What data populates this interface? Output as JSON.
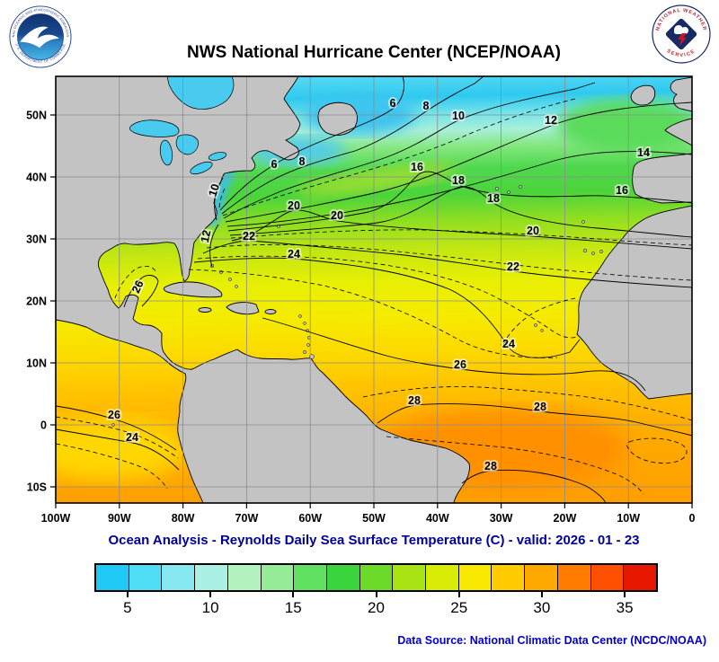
{
  "header": {
    "title": "NWS National Hurricane Center (NCEP/NOAA)"
  },
  "logos": {
    "noaa": {
      "ring_top": "NATIONAL OCEANIC AND ATMOSPHERIC ADMINISTRATION",
      "ring_bottom": "U.S. DEPARTMENT OF COMMERCE"
    },
    "nws": {
      "arc_top": "NATIONAL WEATHER",
      "arc_bottom": "SERVICE"
    }
  },
  "map": {
    "lat_labels": [
      "50N",
      "40N",
      "30N",
      "20N",
      "10N",
      "0",
      "10S"
    ],
    "lon_labels": [
      "100W",
      "90W",
      "80W",
      "70W",
      "60W",
      "50W",
      "40W",
      "30W",
      "20W",
      "10W",
      "0"
    ],
    "contour_labels": [
      {
        "t": "6"
      },
      {
        "t": "8"
      },
      {
        "t": "10"
      },
      {
        "t": "12"
      },
      {
        "t": "6"
      },
      {
        "t": "8"
      },
      {
        "t": "14"
      },
      {
        "t": "16"
      },
      {
        "t": "18"
      },
      {
        "t": "18"
      },
      {
        "t": "16"
      },
      {
        "t": "10"
      },
      {
        "t": "20"
      },
      {
        "t": "20"
      },
      {
        "t": "20"
      },
      {
        "t": "12"
      },
      {
        "t": "22"
      },
      {
        "t": "22"
      },
      {
        "t": "24"
      },
      {
        "t": "26"
      },
      {
        "t": "24"
      },
      {
        "t": "26"
      },
      {
        "t": "28"
      },
      {
        "t": "28"
      },
      {
        "t": "26"
      },
      {
        "t": "24"
      },
      {
        "t": "28"
      }
    ]
  },
  "caption": {
    "text": "Ocean Analysis - Reynolds Daily Sea Surface Temperature (C) - valid: 2026 - 01 - 23"
  },
  "legend": {
    "ticks": [
      "5",
      "10",
      "15",
      "20",
      "25",
      "30",
      "35"
    ],
    "colors": [
      "#1FC8F5",
      "#4FDCF5",
      "#85E8F0",
      "#ABF0E4",
      "#B4F2C0",
      "#96EC96",
      "#62E062",
      "#3CD43C",
      "#6CDA28",
      "#A8E414",
      "#D8EC06",
      "#F8E800",
      "#FFCC00",
      "#FFA800",
      "#FF7C00",
      "#FF4F00",
      "#E81800"
    ]
  },
  "ocean_gradient": [
    "#55D8F2",
    "#2FC9F0",
    "#74E2EA",
    "#A9EFD9",
    "#84E77F",
    "#4FD84F",
    "#4CD43B",
    "#8FDE22",
    "#C4E711",
    "#E7EF04",
    "#F5EC00",
    "#FCDB00",
    "#FFC300",
    "#FFAD00",
    "#FF9F00"
  ],
  "colors": {
    "land": "#C3C3C3",
    "lake": "#49CBEF",
    "grid": "#8C8C8C",
    "caption": "#000099",
    "source": "#0000CC"
  },
  "source": {
    "text": "Data Source: National Climatic Data Center (NCDC/NOAA)"
  }
}
